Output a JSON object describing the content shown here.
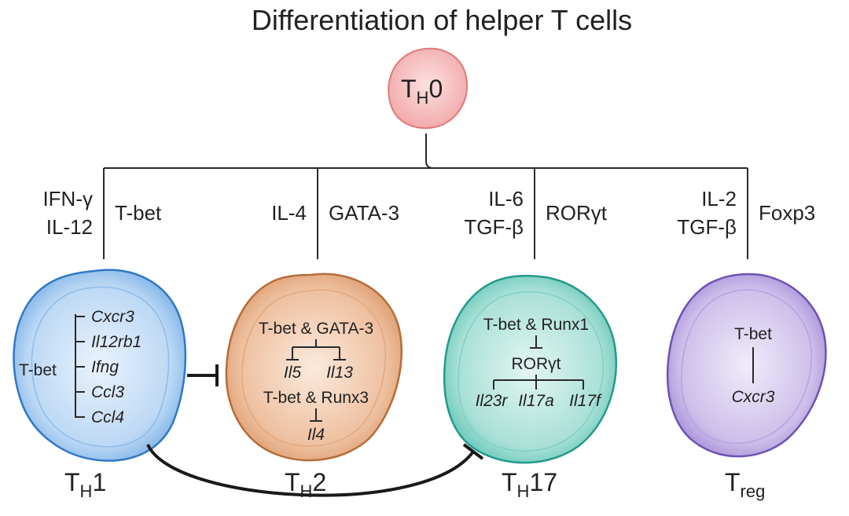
{
  "title": "Differentiation of helper T cells",
  "th0": {
    "main": "T",
    "sub": "H",
    "suffix": "0"
  },
  "branches": {
    "th1": {
      "cytokines": [
        "IFN-γ",
        "IL-12"
      ],
      "factor": "T-bet"
    },
    "th2": {
      "cytokines": [
        "IL-4"
      ],
      "factor": "GATA-3"
    },
    "th17": {
      "cytokines": [
        "IL-6",
        "TGF-β"
      ],
      "factor": "RORγt"
    },
    "treg": {
      "cytokines": [
        "IL-2",
        "TGF-β"
      ],
      "factor": "Foxp3"
    }
  },
  "cells": {
    "th1": {
      "label": {
        "main": "T",
        "sub": "H",
        "suffix": "1"
      },
      "regulator": "T-bet",
      "genes": [
        "Cxcr3",
        "Il12rb1",
        "Ifng",
        "Ccl3",
        "Ccl4"
      ],
      "color": "#3f86cf"
    },
    "th2": {
      "label": {
        "main": "T",
        "sub": "H",
        "suffix": "2"
      },
      "complex1": "T-bet & GATA-3",
      "genes1": [
        "Il5",
        "Il13"
      ],
      "complex2": "T-bet & Runx3",
      "genes2": [
        "Il4"
      ],
      "color": "#c98954"
    },
    "th17": {
      "label": {
        "main": "T",
        "sub": "H",
        "suffix": "17"
      },
      "complex": "T-bet & Runx1",
      "target": "RORγt",
      "genes": [
        "Il23r",
        "Il17a",
        "Il17f"
      ],
      "color": "#3fb2a3"
    },
    "treg": {
      "label": {
        "main": "T",
        "sub": "reg",
        "suffix": ""
      },
      "regulator": "T-bet",
      "gene": "Cxcr3",
      "color": "#8a6cc6"
    }
  }
}
